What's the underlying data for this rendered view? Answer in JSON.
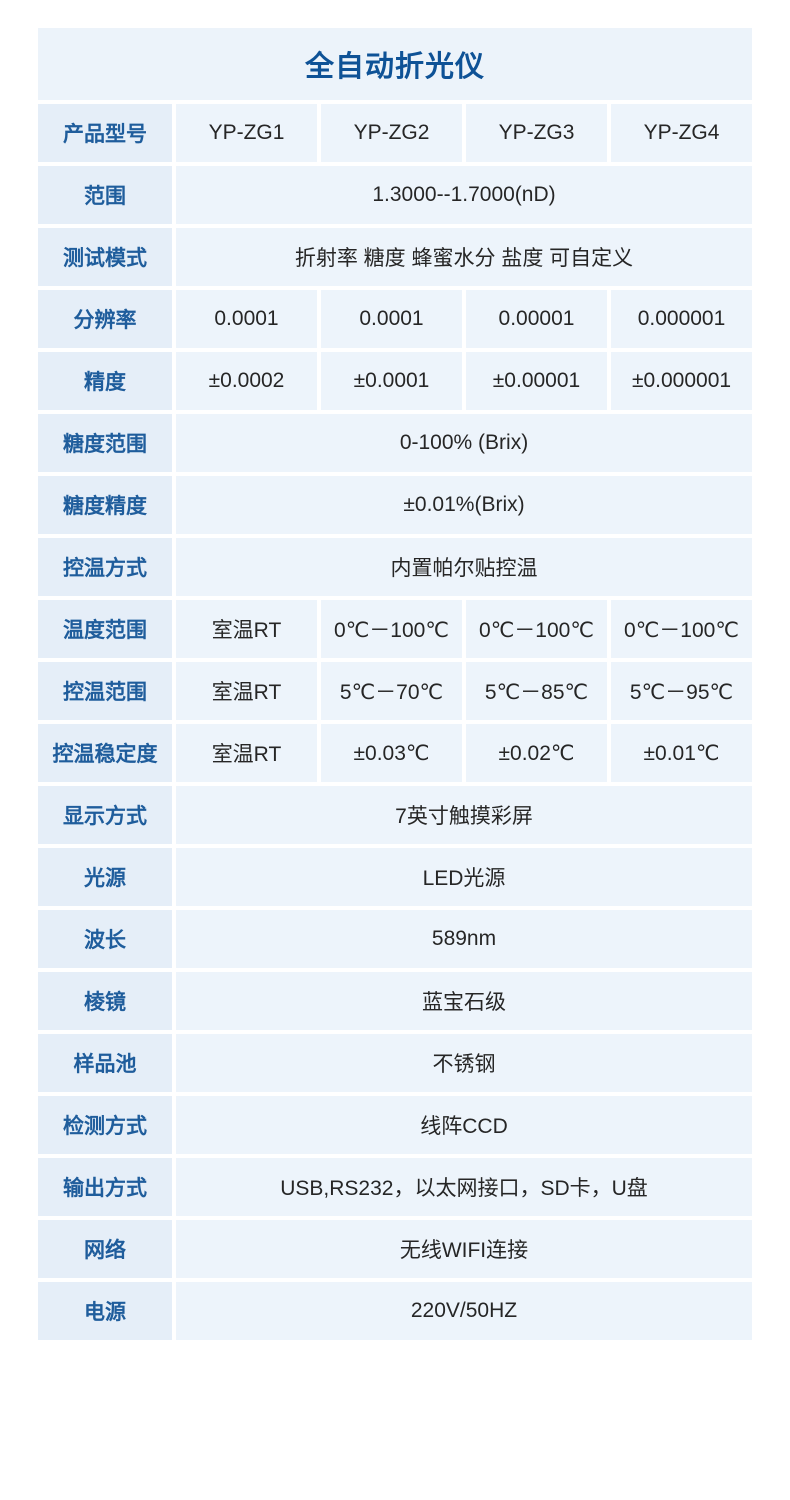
{
  "colors": {
    "page_background": "#ffffff",
    "title_text": "#0e5296",
    "label_text": "#1f5d9c",
    "value_text": "#262626",
    "title_bg": "#ecf3fa",
    "label_bg": "#e5eef8",
    "value_bg": "#edf4fb"
  },
  "table": {
    "title": "全自动折光仪",
    "rows": [
      {
        "label": "产品型号",
        "values": [
          "YP-ZG1",
          "YP-ZG2",
          "YP-ZG3",
          "YP-ZG4"
        ]
      },
      {
        "label": "范围",
        "values": [
          "1.3000--1.7000(nD)"
        ]
      },
      {
        "label": "测试模式",
        "values": [
          "折射率 糖度 蜂蜜水分 盐度 可自定义"
        ]
      },
      {
        "label": "分辨率",
        "values": [
          "0.0001",
          "0.0001",
          "0.00001",
          "0.000001"
        ]
      },
      {
        "label": "精度",
        "values": [
          "±0.0002",
          "±0.0001",
          "±0.00001",
          "±0.000001"
        ]
      },
      {
        "label": "糖度范围",
        "values": [
          "0-100% (Brix)"
        ]
      },
      {
        "label": "糖度精度",
        "values": [
          "±0.01%(Brix)"
        ]
      },
      {
        "label": "控温方式",
        "values": [
          "内置帕尔贴控温"
        ]
      },
      {
        "label": "温度范围",
        "values": [
          "室温RT",
          "0℃－100℃",
          "0℃－100℃",
          "0℃－100℃"
        ]
      },
      {
        "label": "控温范围",
        "values": [
          "室温RT",
          "5℃－70℃",
          "5℃－85℃",
          "5℃－95℃"
        ]
      },
      {
        "label": "控温稳定度",
        "values": [
          "室温RT",
          "±0.03℃",
          "±0.02℃",
          "±0.01℃"
        ]
      },
      {
        "label": "显示方式",
        "values": [
          "7英寸触摸彩屏"
        ]
      },
      {
        "label": "光源",
        "values": [
          "LED光源"
        ]
      },
      {
        "label": "波长",
        "values": [
          "589nm"
        ]
      },
      {
        "label": "棱镜",
        "values": [
          "蓝宝石级"
        ]
      },
      {
        "label": "样品池",
        "values": [
          "不锈钢"
        ]
      },
      {
        "label": "检测方式",
        "values": [
          "线阵CCD"
        ]
      },
      {
        "label": "输出方式",
        "values": [
          "USB,RS232，以太网接口，SD卡，U盘"
        ]
      },
      {
        "label": "网络",
        "values": [
          "无线WIFI连接"
        ]
      },
      {
        "label": "电源",
        "values": [
          "220V/50HZ"
        ]
      }
    ]
  }
}
